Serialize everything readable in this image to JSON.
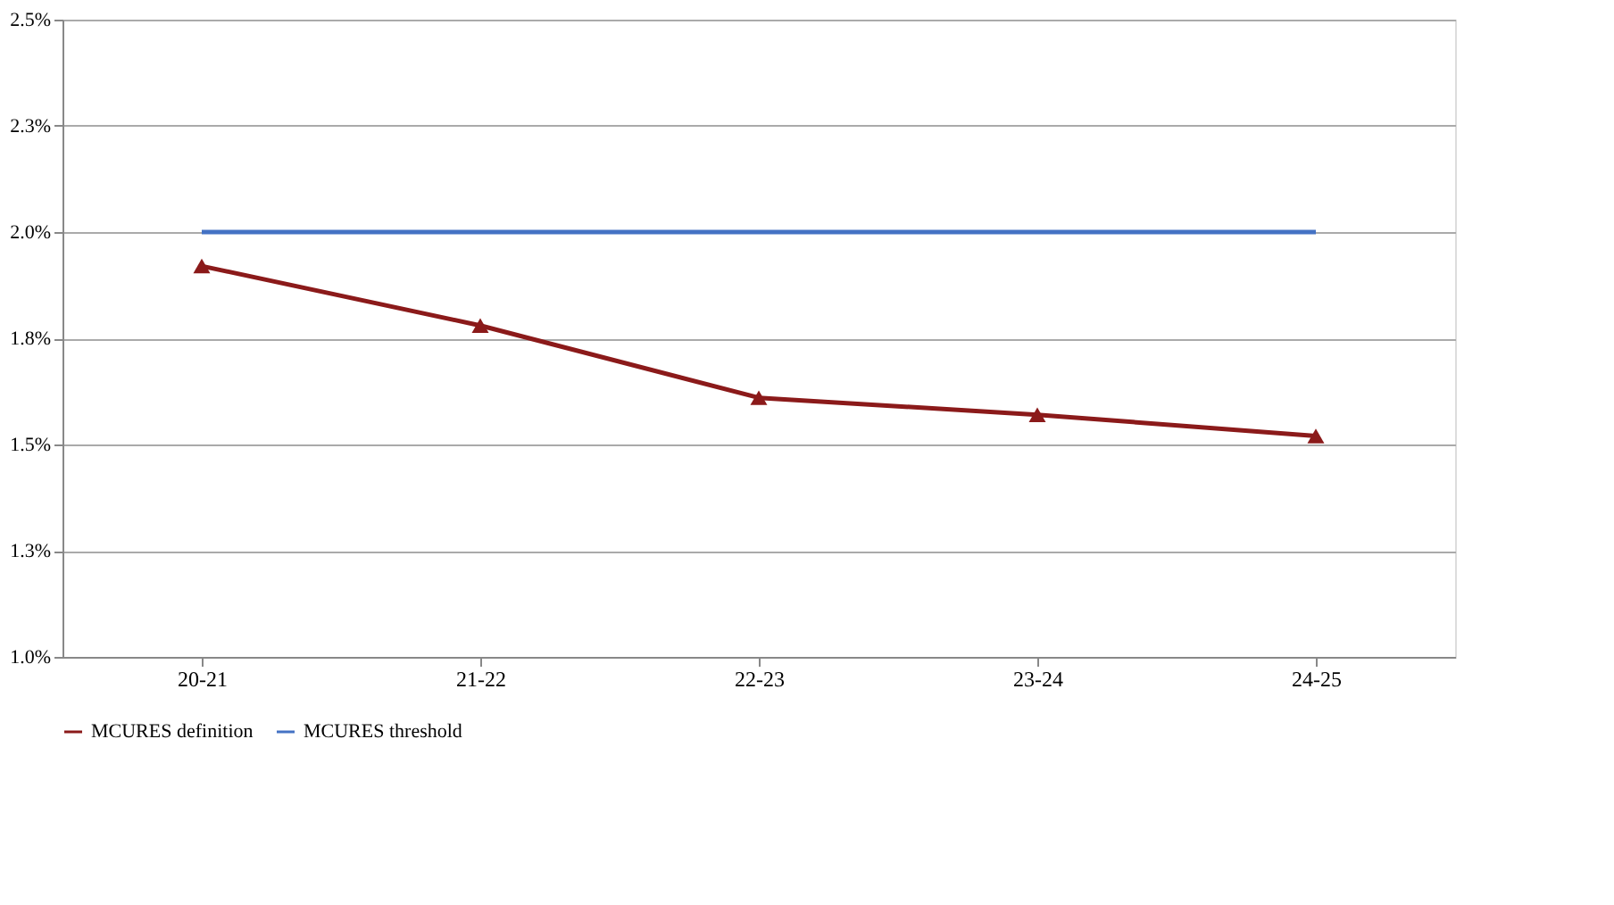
{
  "chart_data": {
    "type": "line",
    "categories": [
      "20-21",
      "21-22",
      "22-23",
      "23-24",
      "24-25"
    ],
    "series": [
      {
        "name": "MCURES definition",
        "color": "#8b1a1a",
        "marker": "triangle",
        "values": [
          1.92,
          1.78,
          1.61,
          1.57,
          1.52
        ]
      },
      {
        "name": "MCURES threshold",
        "color": "#4472c4",
        "marker": "none",
        "values": [
          2.0,
          2.0,
          2.0,
          2.0,
          2.0
        ]
      }
    ],
    "ylim": [
      1.0,
      2.5
    ],
    "yticks": [
      {
        "value": 1.0,
        "label": "1.0%"
      },
      {
        "value": 1.25,
        "label": "1.3%"
      },
      {
        "value": 1.5,
        "label": "1.5%"
      },
      {
        "value": 1.75,
        "label": "1.8%"
      },
      {
        "value": 2.0,
        "label": "2.0%"
      },
      {
        "value": 2.25,
        "label": "2.3%"
      },
      {
        "value": 2.5,
        "label": "2.5%"
      }
    ],
    "grid": "y",
    "legend": "bottom",
    "line_style": "solid"
  }
}
